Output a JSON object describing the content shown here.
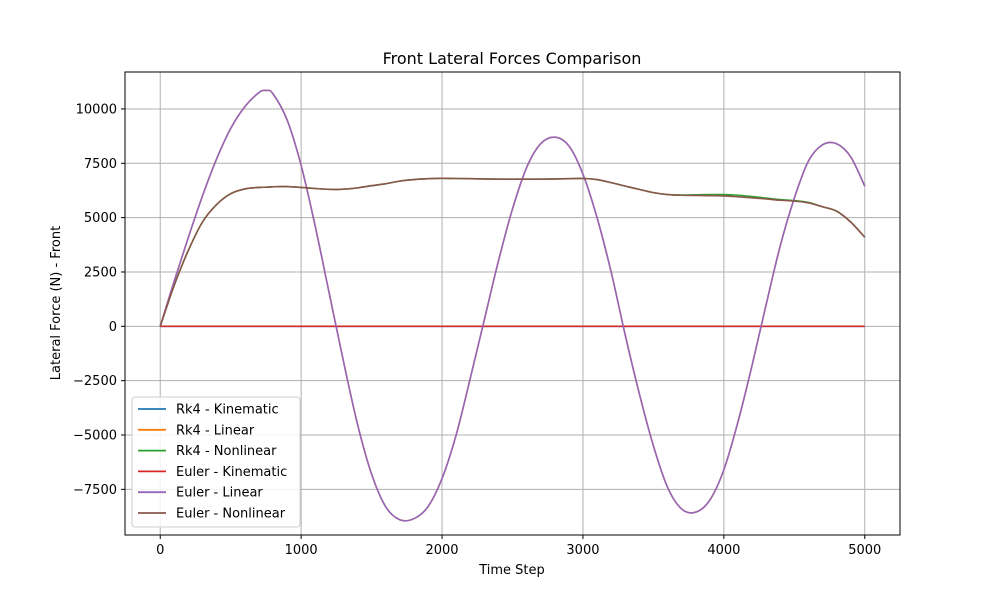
{
  "chart_data": {
    "type": "line",
    "title": "Front Lateral Forces Comparison",
    "xlabel": "Time Step",
    "ylabel": "Lateral Force (N) - Front",
    "xlim": [
      -250,
      5250
    ],
    "ylim": [
      -9600,
      11700
    ],
    "x_ticks": [
      0,
      1000,
      2000,
      3000,
      4000,
      5000
    ],
    "x_tick_labels": [
      "0",
      "1000",
      "2000",
      "3000",
      "4000",
      "5000"
    ],
    "y_ticks": [
      -7500,
      -5000,
      -2500,
      0,
      2500,
      5000,
      7500,
      10000
    ],
    "y_tick_labels": [
      "−7500",
      "−5000",
      "−2500",
      "0",
      "2500",
      "5000",
      "7500",
      "10000"
    ],
    "grid": true,
    "legend_position": "lower-left",
    "x": [
      0,
      100,
      200,
      300,
      400,
      500,
      600,
      700,
      750,
      800,
      900,
      1000,
      1100,
      1200,
      1300,
      1400,
      1500,
      1600,
      1700,
      1800,
      1900,
      2000,
      2100,
      2200,
      2300,
      2400,
      2500,
      2600,
      2700,
      2800,
      2900,
      3000,
      3100,
      3200,
      3300,
      3400,
      3500,
      3600,
      3700,
      3800,
      3900,
      4000,
      4100,
      4200,
      4300,
      4400,
      4500,
      4600,
      4700,
      4800,
      4900,
      5000
    ],
    "series": [
      {
        "name": "Rk4 - Kinematic",
        "color": "#1f77b4",
        "values": [
          0,
          0,
          0,
          0,
          0,
          0,
          0,
          0,
          0,
          0,
          0,
          0,
          0,
          0,
          0,
          0,
          0,
          0,
          0,
          0,
          0,
          0,
          0,
          0,
          0,
          0,
          0,
          0,
          0,
          0,
          0,
          0,
          0,
          0,
          0,
          0,
          0,
          0,
          0,
          0,
          0,
          0,
          0,
          0,
          0,
          0,
          0,
          0,
          0,
          0,
          0,
          0
        ]
      },
      {
        "name": "Rk4 - Linear",
        "color": "#ff7f0e",
        "values": [
          0,
          2100,
          4100,
          6000,
          7700,
          9100,
          10100,
          10750,
          10850,
          10700,
          9500,
          7400,
          4600,
          1500,
          -1600,
          -4500,
          -6800,
          -8300,
          -8900,
          -8850,
          -8300,
          -7000,
          -5000,
          -2400,
          300,
          3000,
          5400,
          7300,
          8400,
          8700,
          8300,
          7000,
          5000,
          2500,
          -400,
          -3100,
          -5500,
          -7400,
          -8400,
          -8550,
          -8000,
          -6600,
          -4400,
          -1800,
          1000,
          3700,
          5900,
          7600,
          8350,
          8400,
          7800,
          6450
        ]
      },
      {
        "name": "Rk4 - Nonlinear",
        "color": "#2ca02c",
        "values": [
          0,
          1900,
          3500,
          4800,
          5600,
          6100,
          6320,
          6390,
          6400,
          6420,
          6430,
          6390,
          6340,
          6300,
          6310,
          6370,
          6470,
          6560,
          6680,
          6750,
          6790,
          6810,
          6800,
          6790,
          6780,
          6770,
          6770,
          6770,
          6770,
          6780,
          6790,
          6800,
          6750,
          6610,
          6450,
          6300,
          6150,
          6060,
          6040,
          6050,
          6060,
          6060,
          6030,
          5970,
          5900,
          5830,
          5780,
          5700,
          5500,
          5300,
          4800,
          4100
        ]
      },
      {
        "name": "Euler - Kinematic",
        "color": "#d62728",
        "values": [
          0,
          0,
          0,
          0,
          0,
          0,
          0,
          0,
          0,
          0,
          0,
          0,
          0,
          0,
          0,
          0,
          0,
          0,
          0,
          0,
          0,
          0,
          0,
          0,
          0,
          0,
          0,
          0,
          0,
          0,
          0,
          0,
          0,
          0,
          0,
          0,
          0,
          0,
          0,
          0,
          0,
          0,
          0,
          0,
          0,
          0,
          0,
          0,
          0,
          0,
          0,
          0
        ]
      },
      {
        "name": "Euler - Linear",
        "color": "#9467bd",
        "values": [
          0,
          2100,
          4100,
          6000,
          7700,
          9100,
          10100,
          10750,
          10850,
          10700,
          9500,
          7400,
          4600,
          1500,
          -1600,
          -4500,
          -6800,
          -8300,
          -8900,
          -8850,
          -8300,
          -7000,
          -5000,
          -2400,
          300,
          3000,
          5400,
          7300,
          8400,
          8700,
          8300,
          7000,
          5000,
          2500,
          -400,
          -3100,
          -5500,
          -7400,
          -8400,
          -8550,
          -8000,
          -6600,
          -4400,
          -1800,
          1000,
          3700,
          5900,
          7600,
          8350,
          8400,
          7800,
          6450
        ]
      },
      {
        "name": "Euler - Nonlinear",
        "color": "#8c564b",
        "values": [
          0,
          1900,
          3500,
          4800,
          5600,
          6100,
          6320,
          6390,
          6400,
          6420,
          6430,
          6390,
          6340,
          6300,
          6310,
          6370,
          6470,
          6560,
          6680,
          6750,
          6790,
          6810,
          6800,
          6790,
          6780,
          6770,
          6770,
          6770,
          6770,
          6780,
          6790,
          6800,
          6750,
          6610,
          6450,
          6300,
          6150,
          6060,
          6030,
          6020,
          6010,
          6000,
          5960,
          5910,
          5860,
          5800,
          5760,
          5680,
          5500,
          5300,
          4800,
          4100
        ]
      }
    ]
  }
}
